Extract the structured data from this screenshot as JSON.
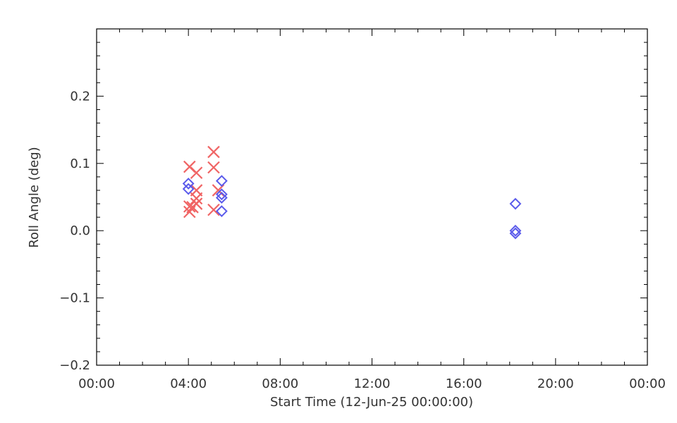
{
  "chart_data": {
    "type": "scatter",
    "xlabel": "Start Time (12-Jun-25 00:00:00)",
    "ylabel": "Roll Angle (deg)",
    "xlim": [
      0,
      24
    ],
    "ylim": [
      -0.2,
      0.3
    ],
    "x_ticks": [
      0,
      4,
      8,
      12,
      16,
      20,
      24
    ],
    "x_tick_labels": [
      "00:00",
      "04:00",
      "08:00",
      "12:00",
      "16:00",
      "20:00",
      "00:00"
    ],
    "y_ticks": [
      -0.2,
      -0.1,
      0.0,
      0.1,
      0.2
    ],
    "y_tick_labels": [
      "−0.2",
      "−0.1",
      "0.0",
      "0.1",
      "0.2"
    ],
    "grid": false,
    "series": [
      {
        "marker": "x",
        "color": "#f06464",
        "points": [
          {
            "x": 4.05,
            "y": 0.095
          },
          {
            "x": 4.05,
            "y": 0.036
          },
          {
            "x": 4.05,
            "y": 0.028
          },
          {
            "x": 4.18,
            "y": 0.035
          },
          {
            "x": 4.35,
            "y": 0.086
          },
          {
            "x": 4.35,
            "y": 0.06
          },
          {
            "x": 4.35,
            "y": 0.048
          },
          {
            "x": 4.35,
            "y": 0.04
          },
          {
            "x": 5.1,
            "y": 0.117
          },
          {
            "x": 5.1,
            "y": 0.094
          },
          {
            "x": 5.1,
            "y": 0.031
          },
          {
            "x": 5.3,
            "y": 0.06
          }
        ]
      },
      {
        "marker": "diamond",
        "color": "#5a5aeb",
        "points": [
          {
            "x": 4.0,
            "y": 0.07
          },
          {
            "x": 4.0,
            "y": 0.062
          },
          {
            "x": 5.45,
            "y": 0.074
          },
          {
            "x": 5.45,
            "y": 0.054
          },
          {
            "x": 5.45,
            "y": 0.049
          },
          {
            "x": 5.45,
            "y": 0.029
          },
          {
            "x": 18.25,
            "y": 0.04
          },
          {
            "x": 18.25,
            "y": 0.0
          },
          {
            "x": 18.25,
            "y": -0.004
          }
        ]
      }
    ]
  }
}
